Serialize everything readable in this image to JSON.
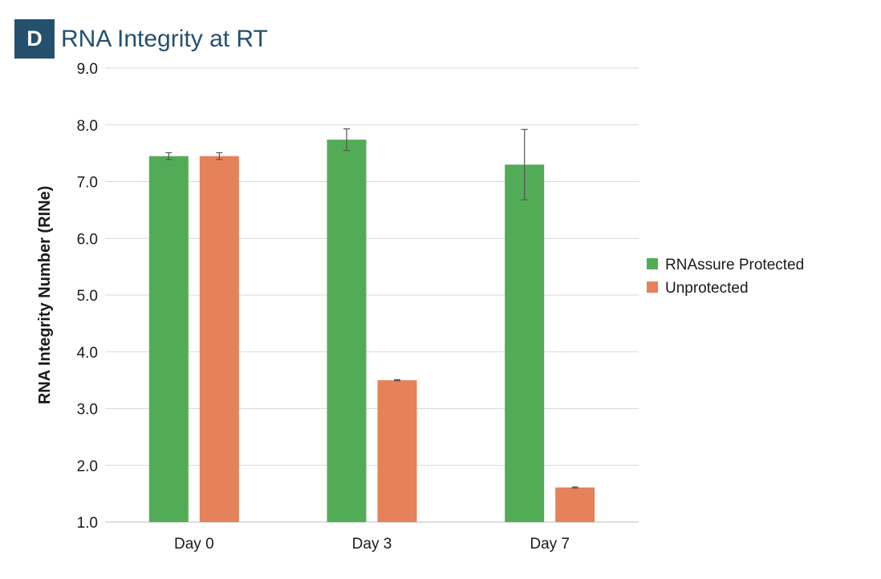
{
  "panel": {
    "label": "D"
  },
  "chart_data": {
    "type": "bar",
    "title": "RNA Integrity at RT",
    "xlabel": "",
    "ylabel": "RNA Integrity Number (RINe)",
    "ylim": [
      1.0,
      9.0
    ],
    "yticks": [
      "1.0",
      "2.0",
      "3.0",
      "4.0",
      "5.0",
      "6.0",
      "7.0",
      "8.0",
      "9.0"
    ],
    "grid": true,
    "legend_position": "right",
    "categories": [
      "Day 0",
      "Day 3",
      "Day 7"
    ],
    "series": [
      {
        "name": "RNAssure Protected",
        "color": "#52ac57",
        "values": [
          7.45,
          7.74,
          7.3
        ],
        "errors": [
          0.06,
          0.19,
          0.62
        ]
      },
      {
        "name": "Unprotected",
        "color": "#e5825a",
        "values": [
          7.45,
          3.5,
          1.61
        ],
        "errors": [
          0.06,
          0.01,
          0.01
        ]
      }
    ]
  }
}
